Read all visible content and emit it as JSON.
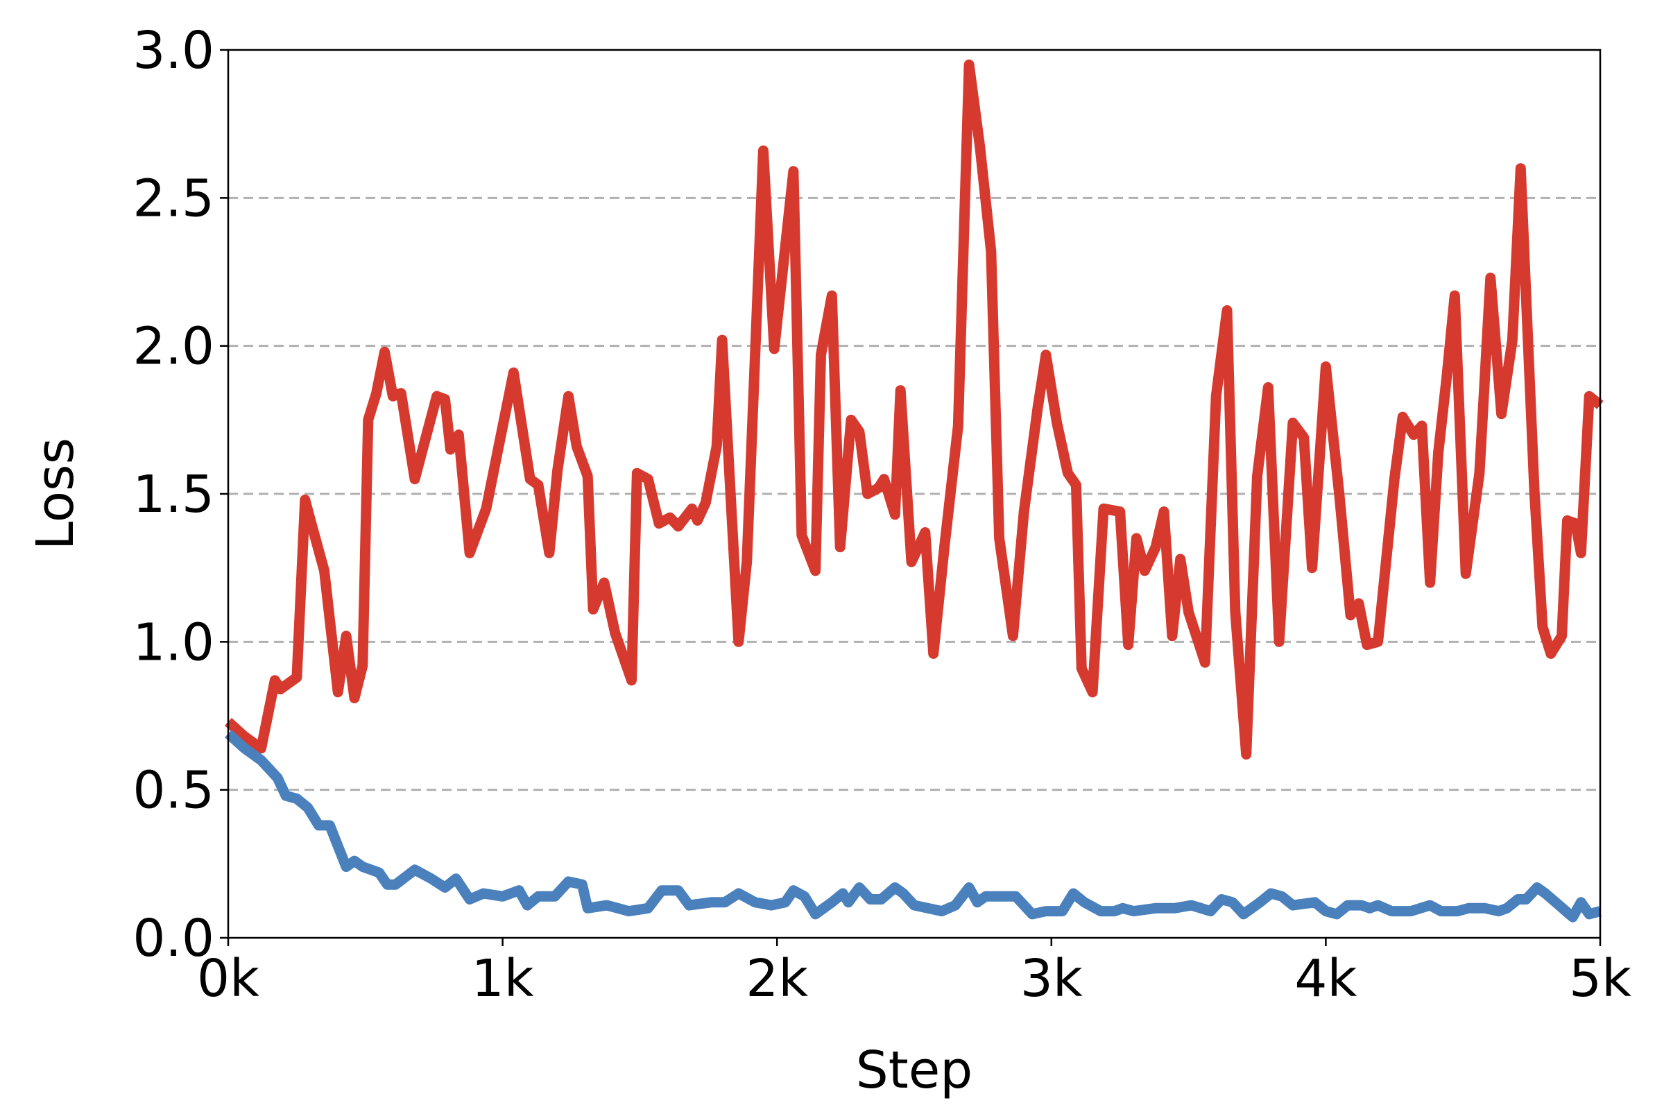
{
  "chart_data": {
    "type": "line",
    "title": "",
    "xlabel": "Step",
    "ylabel": "Loss",
    "xlim": [
      0,
      5000
    ],
    "ylim": [
      0,
      3.0
    ],
    "x_ticks": [
      0,
      1000,
      2000,
      3000,
      4000,
      5000
    ],
    "x_tick_labels": [
      "0k",
      "1k",
      "2k",
      "3k",
      "4k",
      "5k"
    ],
    "y_ticks": [
      0.0,
      0.5,
      1.0,
      1.5,
      2.0,
      2.5,
      3.0
    ],
    "y_tick_labels": [
      "0.0",
      "0.5",
      "1.0",
      "1.5",
      "2.0",
      "2.5",
      "3.0"
    ],
    "grid": "horizontal dashed",
    "series": [
      {
        "color": "#d63a2f",
        "points": [
          [
            0,
            0.73
          ],
          [
            60,
            0.68
          ],
          [
            120,
            0.64
          ],
          [
            170,
            0.87
          ],
          [
            190,
            0.84
          ],
          [
            250,
            0.88
          ],
          [
            280,
            1.48
          ],
          [
            300,
            1.41
          ],
          [
            350,
            1.24
          ],
          [
            400,
            0.83
          ],
          [
            430,
            1.02
          ],
          [
            460,
            0.81
          ],
          [
            490,
            0.92
          ],
          [
            510,
            1.75
          ],
          [
            540,
            1.84
          ],
          [
            570,
            1.98
          ],
          [
            600,
            1.83
          ],
          [
            630,
            1.84
          ],
          [
            680,
            1.55
          ],
          [
            720,
            1.69
          ],
          [
            760,
            1.83
          ],
          [
            790,
            1.82
          ],
          [
            810,
            1.65
          ],
          [
            840,
            1.7
          ],
          [
            880,
            1.3
          ],
          [
            940,
            1.45
          ],
          [
            990,
            1.68
          ],
          [
            1040,
            1.91
          ],
          [
            1100,
            1.55
          ],
          [
            1130,
            1.53
          ],
          [
            1170,
            1.3
          ],
          [
            1200,
            1.58
          ],
          [
            1240,
            1.83
          ],
          [
            1270,
            1.66
          ],
          [
            1310,
            1.56
          ],
          [
            1330,
            1.11
          ],
          [
            1370,
            1.2
          ],
          [
            1410,
            1.03
          ],
          [
            1470,
            0.87
          ],
          [
            1490,
            1.57
          ],
          [
            1530,
            1.55
          ],
          [
            1570,
            1.4
          ],
          [
            1610,
            1.42
          ],
          [
            1640,
            1.39
          ],
          [
            1690,
            1.45
          ],
          [
            1710,
            1.41
          ],
          [
            1740,
            1.47
          ],
          [
            1780,
            1.66
          ],
          [
            1800,
            2.02
          ],
          [
            1860,
            1.0
          ],
          [
            1890,
            1.27
          ],
          [
            1950,
            2.66
          ],
          [
            1990,
            1.99
          ],
          [
            2060,
            2.59
          ],
          [
            2090,
            1.36
          ],
          [
            2140,
            1.24
          ],
          [
            2160,
            1.97
          ],
          [
            2200,
            2.17
          ],
          [
            2230,
            1.32
          ],
          [
            2270,
            1.75
          ],
          [
            2300,
            1.71
          ],
          [
            2330,
            1.5
          ],
          [
            2370,
            1.52
          ],
          [
            2390,
            1.55
          ],
          [
            2430,
            1.43
          ],
          [
            2450,
            1.85
          ],
          [
            2490,
            1.27
          ],
          [
            2540,
            1.37
          ],
          [
            2570,
            0.96
          ],
          [
            2610,
            1.32
          ],
          [
            2660,
            1.73
          ],
          [
            2700,
            2.95
          ],
          [
            2740,
            2.67
          ],
          [
            2780,
            2.32
          ],
          [
            2810,
            1.35
          ],
          [
            2860,
            1.02
          ],
          [
            2900,
            1.44
          ],
          [
            2950,
            1.79
          ],
          [
            2980,
            1.97
          ],
          [
            3020,
            1.74
          ],
          [
            3060,
            1.57
          ],
          [
            3090,
            1.53
          ],
          [
            3110,
            0.91
          ],
          [
            3150,
            0.83
          ],
          [
            3190,
            1.45
          ],
          [
            3250,
            1.44
          ],
          [
            3280,
            0.99
          ],
          [
            3310,
            1.35
          ],
          [
            3340,
            1.24
          ],
          [
            3380,
            1.32
          ],
          [
            3410,
            1.44
          ],
          [
            3440,
            1.02
          ],
          [
            3470,
            1.28
          ],
          [
            3500,
            1.1
          ],
          [
            3560,
            0.93
          ],
          [
            3600,
            1.83
          ],
          [
            3640,
            2.12
          ],
          [
            3670,
            1.1
          ],
          [
            3710,
            0.62
          ],
          [
            3750,
            1.56
          ],
          [
            3790,
            1.86
          ],
          [
            3830,
            1.0
          ],
          [
            3880,
            1.74
          ],
          [
            3920,
            1.69
          ],
          [
            3950,
            1.25
          ],
          [
            4000,
            1.93
          ],
          [
            4050,
            1.49
          ],
          [
            4090,
            1.09
          ],
          [
            4120,
            1.13
          ],
          [
            4150,
            0.99
          ],
          [
            4190,
            1.0
          ],
          [
            4250,
            1.55
          ],
          [
            4280,
            1.76
          ],
          [
            4320,
            1.7
          ],
          [
            4350,
            1.73
          ],
          [
            4380,
            1.2
          ],
          [
            4410,
            1.64
          ],
          [
            4440,
            1.89
          ],
          [
            4470,
            2.17
          ],
          [
            4510,
            1.23
          ],
          [
            4560,
            1.57
          ],
          [
            4600,
            2.23
          ],
          [
            4640,
            1.77
          ],
          [
            4680,
            2.02
          ],
          [
            4710,
            2.6
          ],
          [
            4760,
            1.51
          ],
          [
            4790,
            1.05
          ],
          [
            4820,
            0.96
          ],
          [
            4860,
            1.02
          ],
          [
            4880,
            1.41
          ],
          [
            4910,
            1.4
          ],
          [
            4930,
            1.3
          ],
          [
            4960,
            1.83
          ],
          [
            5000,
            1.8
          ]
        ]
      },
      {
        "color": "#4a81bd",
        "points": [
          [
            0,
            0.69
          ],
          [
            60,
            0.64
          ],
          [
            120,
            0.6
          ],
          [
            180,
            0.54
          ],
          [
            210,
            0.48
          ],
          [
            250,
            0.47
          ],
          [
            290,
            0.44
          ],
          [
            330,
            0.38
          ],
          [
            370,
            0.38
          ],
          [
            400,
            0.31
          ],
          [
            430,
            0.24
          ],
          [
            460,
            0.26
          ],
          [
            490,
            0.24
          ],
          [
            550,
            0.22
          ],
          [
            580,
            0.18
          ],
          [
            610,
            0.18
          ],
          [
            680,
            0.23
          ],
          [
            740,
            0.2
          ],
          [
            790,
            0.17
          ],
          [
            830,
            0.2
          ],
          [
            880,
            0.13
          ],
          [
            930,
            0.15
          ],
          [
            1000,
            0.14
          ],
          [
            1060,
            0.16
          ],
          [
            1090,
            0.11
          ],
          [
            1130,
            0.14
          ],
          [
            1190,
            0.14
          ],
          [
            1240,
            0.19
          ],
          [
            1290,
            0.18
          ],
          [
            1310,
            0.1
          ],
          [
            1380,
            0.11
          ],
          [
            1460,
            0.09
          ],
          [
            1530,
            0.1
          ],
          [
            1580,
            0.16
          ],
          [
            1640,
            0.16
          ],
          [
            1680,
            0.11
          ],
          [
            1760,
            0.12
          ],
          [
            1810,
            0.12
          ],
          [
            1860,
            0.15
          ],
          [
            1920,
            0.12
          ],
          [
            1980,
            0.11
          ],
          [
            2030,
            0.12
          ],
          [
            2060,
            0.16
          ],
          [
            2100,
            0.14
          ],
          [
            2140,
            0.08
          ],
          [
            2200,
            0.12
          ],
          [
            2240,
            0.15
          ],
          [
            2260,
            0.12
          ],
          [
            2300,
            0.17
          ],
          [
            2340,
            0.13
          ],
          [
            2380,
            0.13
          ],
          [
            2430,
            0.17
          ],
          [
            2460,
            0.15
          ],
          [
            2500,
            0.11
          ],
          [
            2550,
            0.1
          ],
          [
            2600,
            0.09
          ],
          [
            2650,
            0.11
          ],
          [
            2700,
            0.17
          ],
          [
            2730,
            0.12
          ],
          [
            2760,
            0.14
          ],
          [
            2830,
            0.14
          ],
          [
            2870,
            0.14
          ],
          [
            2930,
            0.08
          ],
          [
            2980,
            0.09
          ],
          [
            3040,
            0.09
          ],
          [
            3080,
            0.15
          ],
          [
            3120,
            0.12
          ],
          [
            3180,
            0.09
          ],
          [
            3230,
            0.09
          ],
          [
            3260,
            0.1
          ],
          [
            3300,
            0.09
          ],
          [
            3380,
            0.1
          ],
          [
            3450,
            0.1
          ],
          [
            3510,
            0.11
          ],
          [
            3580,
            0.09
          ],
          [
            3620,
            0.13
          ],
          [
            3660,
            0.12
          ],
          [
            3700,
            0.08
          ],
          [
            3760,
            0.12
          ],
          [
            3800,
            0.15
          ],
          [
            3840,
            0.14
          ],
          [
            3880,
            0.11
          ],
          [
            3960,
            0.12
          ],
          [
            4000,
            0.09
          ],
          [
            4040,
            0.08
          ],
          [
            4080,
            0.11
          ],
          [
            4130,
            0.11
          ],
          [
            4160,
            0.1
          ],
          [
            4190,
            0.11
          ],
          [
            4240,
            0.09
          ],
          [
            4310,
            0.09
          ],
          [
            4380,
            0.11
          ],
          [
            4420,
            0.09
          ],
          [
            4480,
            0.09
          ],
          [
            4520,
            0.1
          ],
          [
            4580,
            0.1
          ],
          [
            4630,
            0.09
          ],
          [
            4660,
            0.1
          ],
          [
            4700,
            0.13
          ],
          [
            4730,
            0.13
          ],
          [
            4770,
            0.17
          ],
          [
            4800,
            0.15
          ],
          [
            4850,
            0.11
          ],
          [
            4900,
            0.07
          ],
          [
            4930,
            0.12
          ],
          [
            4960,
            0.08
          ],
          [
            5000,
            0.09
          ]
        ]
      }
    ]
  }
}
